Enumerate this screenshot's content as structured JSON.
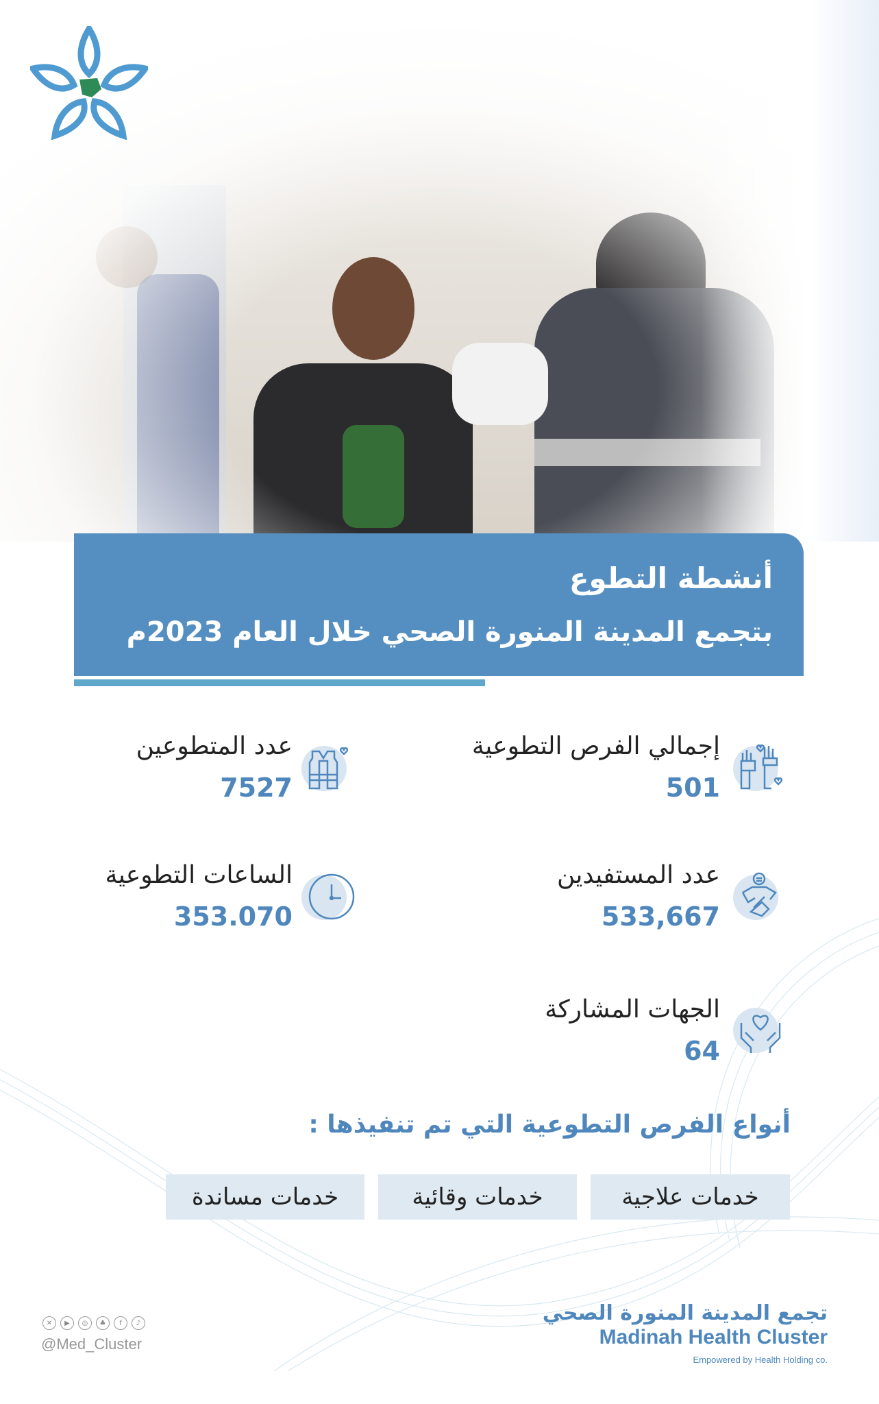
{
  "colors": {
    "accent": "#558fc1",
    "number": "#4f87bd",
    "underline": "#5fa8cb",
    "pill": "#dfe9f1"
  },
  "banner": {
    "title": "أنشطة التطوع",
    "subtitle": "بتجمع المدينة المنورة الصحي خلال العام 2023م"
  },
  "stats": [
    {
      "label": "إجمالي الفرص التطوعية",
      "value": "501",
      "icon": "raised-hands-heart-icon"
    },
    {
      "label": "عدد المتطوعين",
      "value": "7527",
      "icon": "volunteer-vest-icon"
    },
    {
      "label": "عدد المستفيدين",
      "value": "533,667",
      "icon": "helping-hand-person-icon"
    },
    {
      "label": "الساعات التطوعية",
      "value": "353.070",
      "icon": "clock-icon"
    },
    {
      "label": "الجهات المشاركة",
      "value": "64",
      "icon": "hands-heart-icon"
    }
  ],
  "types": {
    "title": "أنواع الفرص التطوعية التي تم تنفيذها :",
    "items": [
      "خدمات علاجية",
      "خدمات وقائية",
      "خدمات مساندة"
    ]
  },
  "footer": {
    "org_ar": "تجمع المدينة المنورة الصحي",
    "org_en": "Madinah Health  Cluster",
    "empowered": "Empowered by Health Holding co.",
    "handle": "@Med_Cluster",
    "social": [
      "x-icon",
      "youtube-icon",
      "instagram-icon",
      "snapchat-icon",
      "facebook-icon",
      "tiktok-icon"
    ]
  }
}
